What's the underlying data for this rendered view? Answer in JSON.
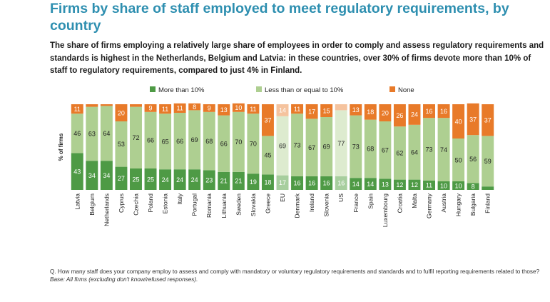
{
  "title": "Firms by share of staff employed to meet regulatory requirements, by country",
  "subtitle": "The share of firms employing a relatively large share of employees in order to comply and assess regulatory requirements and standards is highest in the Netherlands, Belgium and Latvia: in these countries, over 30% of firms devote more than 10% of staff to regulatory requirements, compared to just 4% in Finland.",
  "footnote": {
    "question": "Q. How many staff does your company employ to assess and comply with mandatory or voluntary regulatory requirements and standards and to fulfil reporting requirements related to those?",
    "base": "Base: All firms (excluding don't know/refused responses)."
  },
  "colors": {
    "more": "#4E9A45",
    "less": "#AECF91",
    "none": "#E87A29",
    "more_light": "#A7CE9E",
    "less_light": "#DDEBCF",
    "none_light": "#F5C39E"
  },
  "chart_data": {
    "type": "bar",
    "stacked": true,
    "ylabel": "% of firms",
    "ylim": [
      0,
      100
    ],
    "legend_position": "top",
    "categories": [
      "Latvia",
      "Belgium",
      "Netherlands",
      "Cyprus",
      "Czechia",
      "Poland",
      "Estonia",
      "Italy",
      "Portugal",
      "Romania",
      "Lithuania",
      "Sweden",
      "Slovakia",
      "Greece",
      "EU",
      "Denmark",
      "Ireland",
      "Slovenia",
      "US",
      "France",
      "Spain",
      "Luxembourg",
      "Croatia",
      "Malta",
      "Germany",
      "Austria",
      "Hungary",
      "Bulgaria",
      "Finland"
    ],
    "highlight": [
      "EU",
      "US"
    ],
    "series": [
      {
        "name": "More than 10%",
        "key": "more",
        "values": [
          43,
          34,
          34,
          27,
          25,
          25,
          24,
          24,
          24,
          23,
          21,
          21,
          19,
          18,
          17,
          16,
          16,
          16,
          16,
          14,
          14,
          13,
          12,
          12,
          11,
          10,
          10,
          8,
          4
        ]
      },
      {
        "name": "Less than or equal to 10%",
        "key": "less",
        "values": [
          46,
          63,
          64,
          53,
          72,
          66,
          65,
          66,
          69,
          68,
          66,
          70,
          70,
          45,
          69,
          73,
          67,
          69,
          77,
          73,
          68,
          67,
          62,
          64,
          73,
          74,
          50,
          56,
          59
        ]
      },
      {
        "name": "None",
        "key": "none",
        "values": [
          11,
          3,
          2,
          20,
          3,
          9,
          11,
          11,
          8,
          9,
          13,
          10,
          11,
          37,
          14,
          11,
          17,
          15,
          7,
          13,
          18,
          20,
          26,
          24,
          16,
          16,
          40,
          37,
          37
        ]
      }
    ],
    "labels_hidden": {
      "more": [
        "Finland"
      ],
      "none": [
        "Belgium",
        "Netherlands",
        "Czechia",
        "US"
      ]
    }
  }
}
